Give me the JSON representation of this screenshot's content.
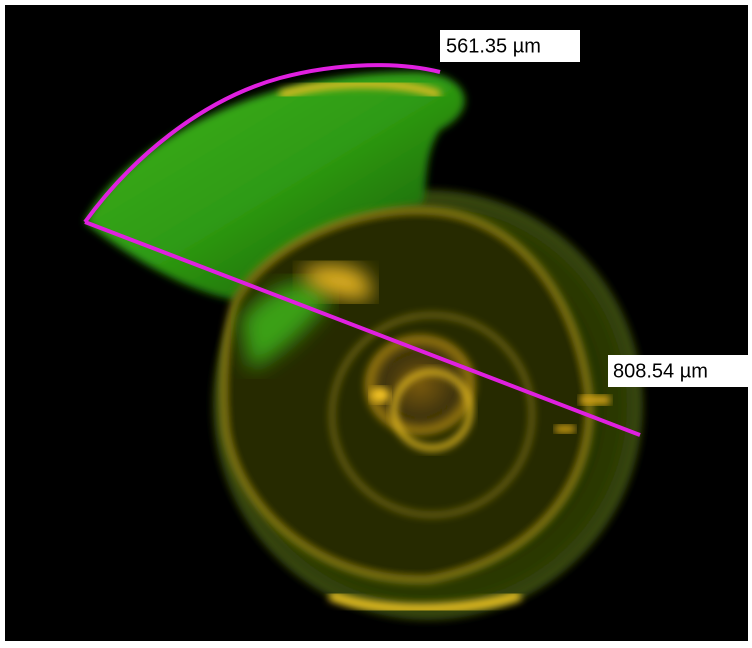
{
  "annotations": [
    {
      "label": "561.35 µm"
    },
    {
      "label": "808.54 µm"
    }
  ]
}
